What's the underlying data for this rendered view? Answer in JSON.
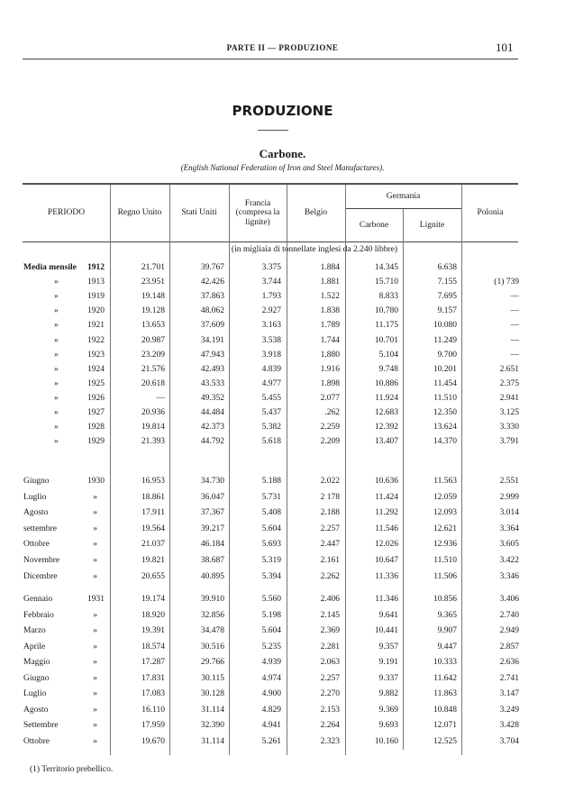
{
  "header": {
    "running_title": "PARTE II — PRODUZIONE",
    "page_number": "101"
  },
  "title": "PRODUZIONE",
  "subtitle": "Carbone.",
  "source": "(English National Federation of Iron and Steel Manufactures).",
  "table": {
    "columns": {
      "periodo": "PERIODO",
      "regno_unito": "Regno Unito",
      "stati_uniti": "Stati Uniti",
      "francia": "Francia (compresa la lignite)",
      "belgio": "Belgio",
      "germania": "Germania",
      "germania_carbone": "Carbone",
      "germania_lignite": "Lignite",
      "polonia": "Polonia"
    },
    "units": "(in migliaia di tonnellate inglesi da 2.240 libbre)",
    "sections": [
      {
        "rows": [
          {
            "period": "Media mensile",
            "year": "1912",
            "values": [
              "21.701",
              "39.767",
              "3.375",
              "1.884",
              "14.345",
              "6.638",
              ""
            ]
          },
          {
            "period": "»",
            "year": "1913",
            "values": [
              "23.951",
              "42.426",
              "3.744",
              "1.881",
              "15.710",
              "7.155",
              "(1) 739"
            ]
          },
          {
            "period": "»",
            "year": "1919",
            "values": [
              "19.148",
              "37.863",
              "1.793",
              "1.522",
              "8.833",
              "7.695",
              "—"
            ]
          },
          {
            "period": "»",
            "year": "1920",
            "values": [
              "19.128",
              "48.062",
              "2.927",
              "1.838",
              "10.780",
              "9.157",
              "—"
            ]
          },
          {
            "period": "»",
            "year": "1921",
            "values": [
              "13.653",
              "37.609",
              "3.163",
              "1.789",
              "11.175",
              "10.080",
              "—"
            ]
          },
          {
            "period": "»",
            "year": "1922",
            "values": [
              "20.987",
              "34.191",
              "3.538",
              "1.744",
              "10.701",
              "11.249",
              "—"
            ]
          },
          {
            "period": "»",
            "year": "1923",
            "values": [
              "23.209",
              "47.943",
              "3.918",
              "1.880",
              "5.104",
              "9.700",
              "—"
            ]
          },
          {
            "period": "»",
            "year": "1924",
            "values": [
              "21.576",
              "42.493",
              "4.839",
              "1.916",
              "9.748",
              "10.201",
              "2.651"
            ]
          },
          {
            "period": "»",
            "year": "1925",
            "values": [
              "20.618",
              "43.533",
              "4.977",
              "1.898",
              "10.886",
              "11.454",
              "2.375"
            ]
          },
          {
            "period": "»",
            "year": "1926",
            "values": [
              "—",
              "49.352",
              "5.455",
              "2.077",
              "11.924",
              "11.510",
              "2.941"
            ]
          },
          {
            "period": "»",
            "year": "1927",
            "values": [
              "20.936",
              "44.484",
              "5.437",
              ".262",
              "12.683",
              "12.350",
              "3.125"
            ]
          },
          {
            "period": "»",
            "year": "1928",
            "values": [
              "19.814",
              "42.373",
              "5.382",
              "2.259",
              "12.392",
              "13.624",
              "3.330"
            ]
          },
          {
            "period": "»",
            "year": "1929",
            "values": [
              "21.393",
              "44.792",
              "5.618",
              "2.209",
              "13.407",
              "14.370",
              "3.791"
            ]
          }
        ]
      },
      {
        "rows": [
          {
            "period": "Giugno",
            "year": "1930",
            "values": [
              "16.953",
              "34.730",
              "5.188",
              "2.022",
              "10.636",
              "11.563",
              "2.551"
            ]
          },
          {
            "period": "Luglio",
            "year": "»",
            "values": [
              "18.861",
              "36.047",
              "5.731",
              "2 178",
              "11.424",
              "12.059",
              "2.999"
            ]
          },
          {
            "period": "Agosto",
            "year": "»",
            "values": [
              "17.911",
              "37.367",
              "5.408",
              "2.188",
              "11.292",
              "12.093",
              "3.014"
            ]
          },
          {
            "period": "settembre",
            "year": "»",
            "values": [
              "19.564",
              "39.217",
              "5.604",
              "2.257",
              "11.546",
              "12.621",
              "3.364"
            ]
          },
          {
            "period": "Ottobre",
            "year": "»",
            "values": [
              "21.037",
              "46.184",
              "5.693",
              "2.447",
              "12.026",
              "12.936",
              "3.605"
            ]
          },
          {
            "period": "Novembre",
            "year": "»",
            "values": [
              "19.821",
              "38.687",
              "5.319",
              "2.161",
              "10.647",
              "11.510",
              "3.422"
            ]
          },
          {
            "period": "Dicembre",
            "year": "»",
            "values": [
              "20.655",
              "40.895",
              "5.394",
              "2.262",
              "11.336",
              "11.506",
              "3.346"
            ]
          }
        ]
      },
      {
        "rows": [
          {
            "period": "Gennaio",
            "year": "1931",
            "values": [
              "19.174",
              "39.910",
              "5.560",
              "2.406",
              "11.346",
              "10.856",
              "3.406"
            ]
          },
          {
            "period": "Febbraio",
            "year": "»",
            "values": [
              "18.920",
              "32.856",
              "5.198",
              "2.145",
              "9.641",
              "9.365",
              "2.740"
            ]
          },
          {
            "period": "Marzo",
            "year": "»",
            "values": [
              "19.391",
              "34.478",
              "5.604",
              "2.369",
              "10.441",
              "9.907",
              "2.949"
            ]
          },
          {
            "period": "Aprile",
            "year": "»",
            "values": [
              "18.574",
              "30.516",
              "5.235",
              "2.281",
              "9.357",
              "9.447",
              "2.857"
            ]
          },
          {
            "period": "Maggio",
            "year": "»",
            "values": [
              "17.287",
              "29.766",
              "4.939",
              "2.063",
              "9.191",
              "10.333",
              "2.636"
            ]
          },
          {
            "period": "Giugno",
            "year": "»",
            "values": [
              "17.831",
              "30.115",
              "4.974",
              "2.257",
              "9.337",
              "11.642",
              "2.741"
            ]
          },
          {
            "period": "Luglio",
            "year": "»",
            "values": [
              "17.083",
              "30.128",
              "4.900",
              "2.270",
              "9.882",
              "11.863",
              "3.147"
            ]
          },
          {
            "period": "Agosto",
            "year": "»",
            "values": [
              "16.110",
              "31.114",
              "4.829",
              "2.153",
              "9.369",
              "10.848",
              "3.249"
            ]
          },
          {
            "period": "Settembre",
            "year": "»",
            "values": [
              "17.959",
              "32.390",
              "4.941",
              "2.264",
              "9.693",
              "12.071",
              "3.428"
            ]
          },
          {
            "period": "Ottobre",
            "year": "»",
            "values": [
              "19.670",
              "31.114",
              "5.261",
              "2.323",
              "10.160",
              "12.525",
              "3.704"
            ]
          }
        ]
      }
    ]
  },
  "footnote": "(1) Territorio prebellico."
}
